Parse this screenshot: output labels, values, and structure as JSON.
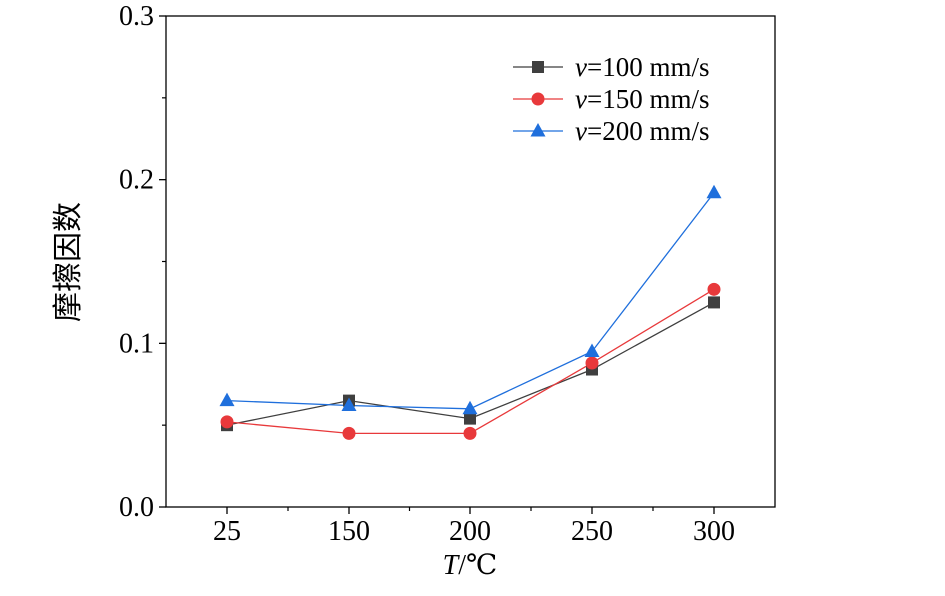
{
  "chart_data": {
    "type": "line",
    "title": "",
    "xlabel": "T/℃",
    "xlabel_parts": {
      "var": "T",
      "unit": "/℃"
    },
    "ylabel": "摩擦因数",
    "categories": [
      "25",
      "150",
      "200",
      "250",
      "300"
    ],
    "ylim": [
      0.0,
      0.3
    ],
    "yticks": [
      "0.0",
      "0.1",
      "0.2",
      "0.3"
    ],
    "grid": false,
    "legend_position": "top-right",
    "series": [
      {
        "name": "v=100 mm/s",
        "name_var": "v",
        "name_rest": "=100 mm/s",
        "color": "#3f3f3f",
        "marker": "square",
        "values": [
          0.05,
          0.065,
          0.054,
          0.084,
          0.125
        ]
      },
      {
        "name": "v=150 mm/s",
        "name_var": "v",
        "name_rest": "=150 mm/s",
        "color": "#e8393b",
        "marker": "circle",
        "values": [
          0.052,
          0.045,
          0.045,
          0.088,
          0.133
        ]
      },
      {
        "name": "v=200 mm/s",
        "name_var": "v",
        "name_rest": "=200 mm/s",
        "color": "#1f6fdc",
        "marker": "triangle",
        "values": [
          0.065,
          0.062,
          0.06,
          0.095,
          0.192
        ]
      }
    ]
  }
}
